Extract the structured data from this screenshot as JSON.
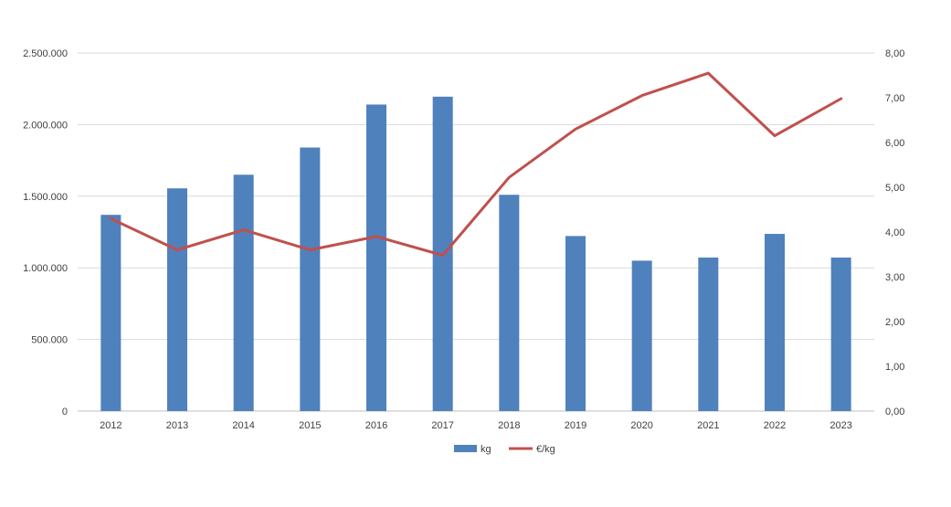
{
  "chart_data": {
    "type": "bar",
    "categories": [
      "2012",
      "2013",
      "2014",
      "2015",
      "2016",
      "2017",
      "2018",
      "2019",
      "2020",
      "2021",
      "2022",
      "2023"
    ],
    "series": [
      {
        "name": "kg",
        "type": "bar",
        "axis": "left",
        "color": "#4F81BD",
        "values": [
          1370000,
          1555000,
          1650000,
          1840000,
          2140000,
          2195000,
          1510000,
          1222000,
          1050000,
          1072000,
          1237000,
          1072000
        ]
      },
      {
        "name": "€/kg",
        "type": "line",
        "axis": "right",
        "color": "#C0504D",
        "values": [
          4.3,
          3.6,
          4.05,
          3.6,
          3.9,
          3.48,
          5.22,
          6.3,
          7.05,
          7.55,
          6.15,
          6.98
        ]
      }
    ],
    "y_left": {
      "ylim": [
        0,
        2500000
      ],
      "ticks": [
        0,
        500000,
        1000000,
        1500000,
        2000000,
        2500000
      ],
      "tick_labels": [
        "0",
        "500.000",
        "1.000.000",
        "1.500.000",
        "2.000.000",
        "2.500.000"
      ]
    },
    "y_right": {
      "ylim": [
        0,
        8
      ],
      "ticks": [
        0,
        1,
        2,
        3,
        4,
        5,
        6,
        7,
        8
      ],
      "tick_labels": [
        "0,00",
        "1,00",
        "2,00",
        "3,00",
        "4,00",
        "5,00",
        "6,00",
        "7,00",
        "8,00"
      ]
    },
    "grid": true,
    "legend": "bottom",
    "title": "",
    "xlabel": "",
    "ylabel": ""
  },
  "colors": {
    "gridline": "#D9D9D9",
    "axis_line": "#BFBFBF",
    "text": "#404040"
  }
}
